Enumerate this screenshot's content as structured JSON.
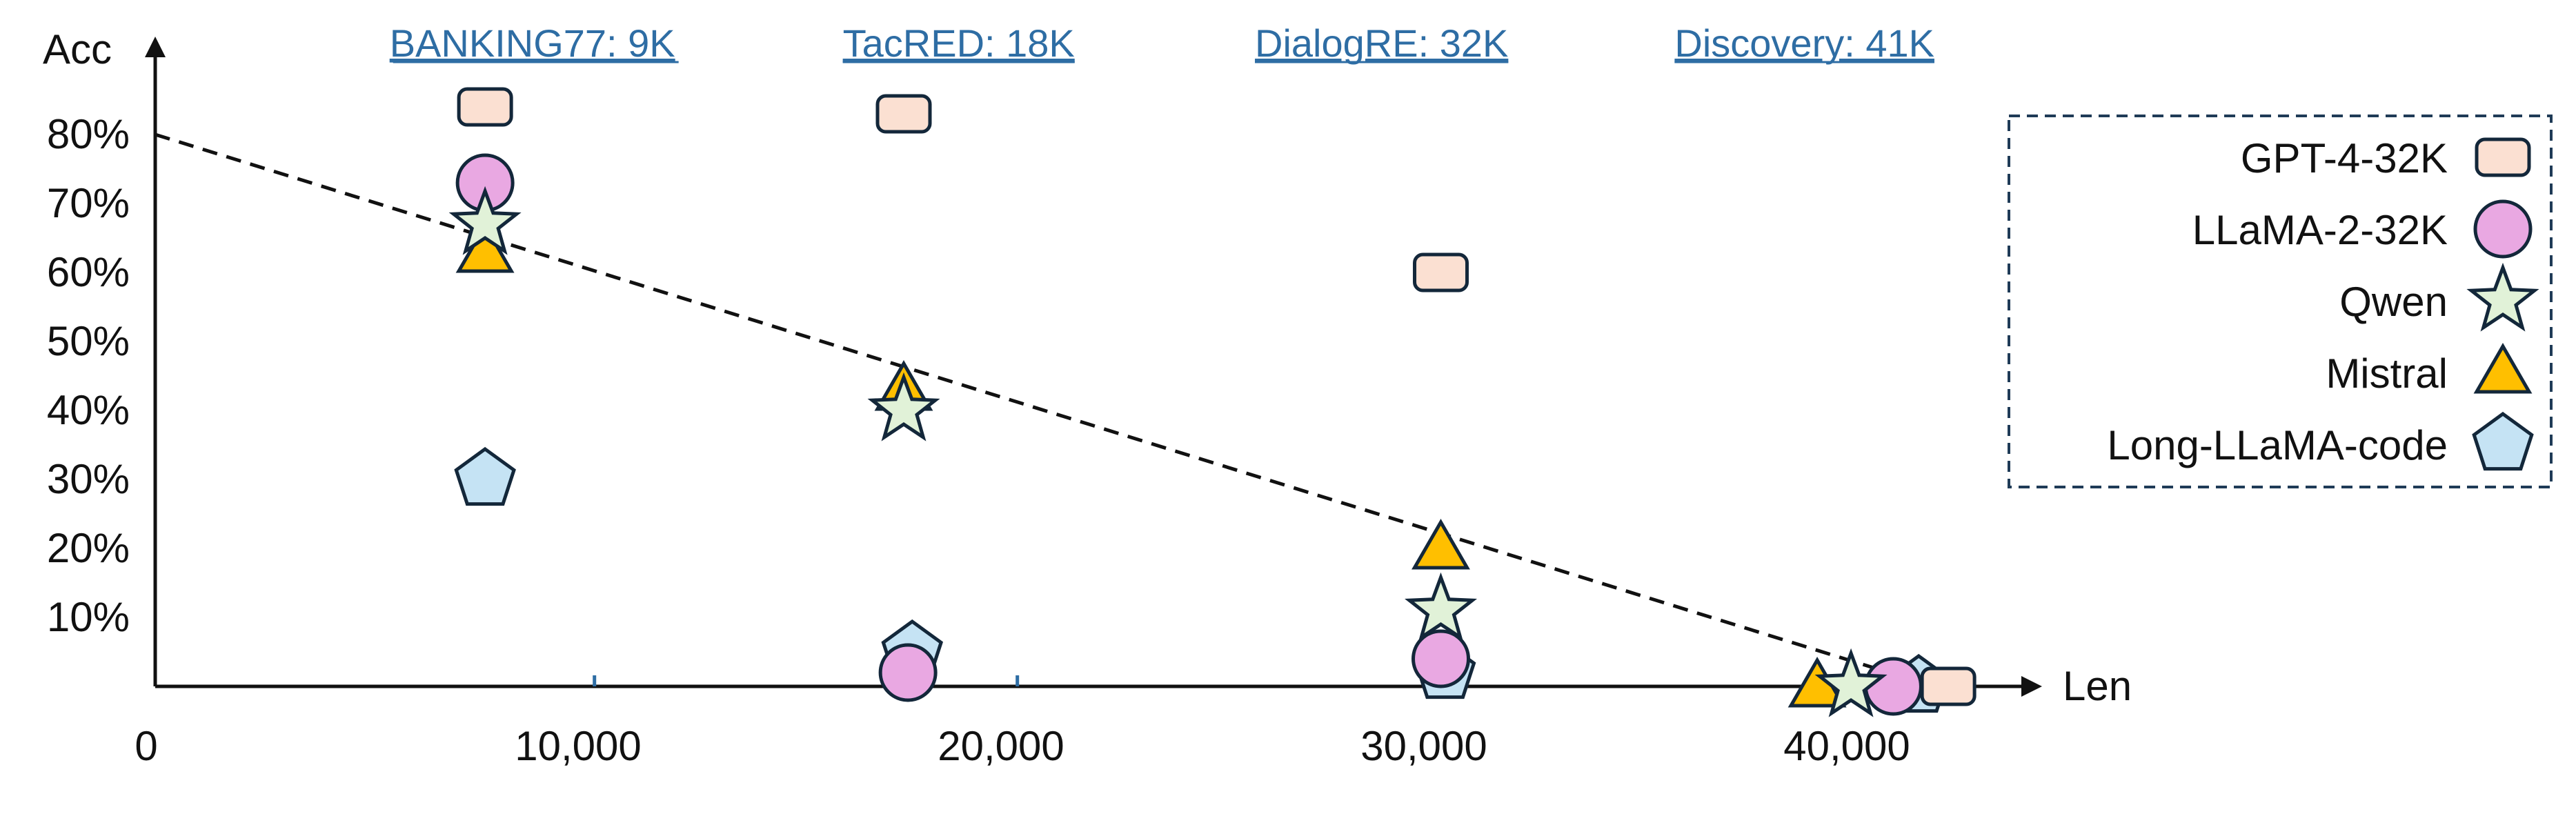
{
  "chart_data": {
    "type": "scatter",
    "xlabel": "Len",
    "ylabel": "Acc",
    "xlim": [
      0,
      43000
    ],
    "ylim": [
      0,
      80
    ],
    "x_ticks": [
      {
        "value": 0,
        "label": "0"
      },
      {
        "value": 10000,
        "label": "10,000"
      },
      {
        "value": 20000,
        "label": "20,000"
      },
      {
        "value": 30000,
        "label": "30,000"
      },
      {
        "value": 40000,
        "label": "40,000"
      }
    ],
    "y_ticks": [
      {
        "value": 10,
        "label": "10%"
      },
      {
        "value": 20,
        "label": "20%"
      },
      {
        "value": 30,
        "label": "30%"
      },
      {
        "value": 40,
        "label": "40%"
      },
      {
        "value": 50,
        "label": "50%"
      },
      {
        "value": 60,
        "label": "60%"
      },
      {
        "value": 70,
        "label": "70%"
      },
      {
        "value": 80,
        "label": "80%"
      }
    ],
    "datasets": [
      {
        "label": "BANKING77: 9K",
        "x": 9000
      },
      {
        "label": "TacRED: 18K",
        "x": 19000
      },
      {
        "label": "DialogRE: 32K",
        "x": 29000
      },
      {
        "label": "Discovery: 41K",
        "x": 39000
      }
    ],
    "trend_line": {
      "x": [
        0,
        41000
      ],
      "y": [
        80,
        2
      ],
      "style": "dashed"
    },
    "legend_position": "right",
    "series": [
      {
        "name": "GPT-4-32K",
        "marker": "rounded-rect",
        "color": "#fbe0d2",
        "points": [
          {
            "x": 7800,
            "y": 84
          },
          {
            "x": 17700,
            "y": 83
          },
          {
            "x": 30400,
            "y": 60
          },
          {
            "x": 42400,
            "y": 0
          }
        ]
      },
      {
        "name": "LLaMA-2-32K",
        "marker": "circle",
        "color": "#e9a8e2",
        "points": [
          {
            "x": 7800,
            "y": 73
          },
          {
            "x": 17800,
            "y": 2
          },
          {
            "x": 30400,
            "y": 4
          },
          {
            "x": 41100,
            "y": 0
          }
        ]
      },
      {
        "name": "Qwen",
        "marker": "star",
        "color": "#e1f2d8",
        "points": [
          {
            "x": 7800,
            "y": 67
          },
          {
            "x": 17700,
            "y": 40
          },
          {
            "x": 30400,
            "y": 11
          },
          {
            "x": 40100,
            "y": 0
          }
        ]
      },
      {
        "name": "Mistral",
        "marker": "triangle",
        "color": "#ffbf00",
        "points": [
          {
            "x": 7800,
            "y": 63
          },
          {
            "x": 17700,
            "y": 43
          },
          {
            "x": 30400,
            "y": 20
          },
          {
            "x": 39300,
            "y": 0
          }
        ]
      },
      {
        "name": "Long-LLaMA-code",
        "marker": "pentagon",
        "color": "#c5e3f4",
        "points": [
          {
            "x": 7800,
            "y": 30
          },
          {
            "x": 17900,
            "y": 5
          },
          {
            "x": 30500,
            "y": 2
          },
          {
            "x": 41700,
            "y": 0
          }
        ]
      }
    ]
  }
}
